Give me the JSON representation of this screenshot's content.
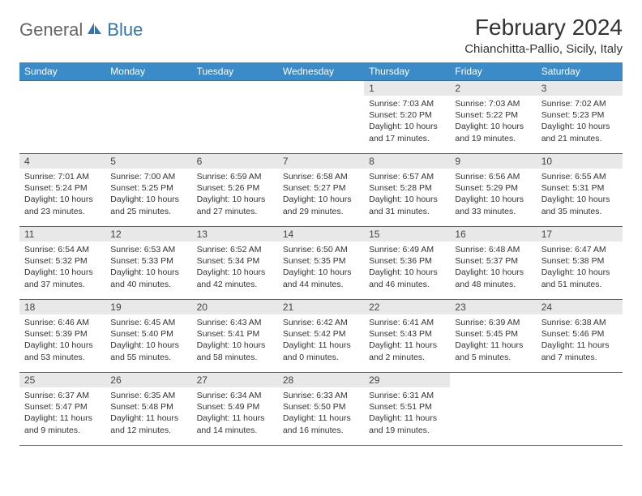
{
  "logo": {
    "text1": "General",
    "text2": "Blue"
  },
  "title": "February 2024",
  "location": "Chianchitta-Pallio, Sicily, Italy",
  "colors": {
    "header_bg": "#3b8bc9",
    "header_text": "#ffffff",
    "daynum_bg": "#e8e8e8",
    "border": "#2e6da8",
    "logo_blue": "#2e75b6"
  },
  "weekdays": [
    "Sunday",
    "Monday",
    "Tuesday",
    "Wednesday",
    "Thursday",
    "Friday",
    "Saturday"
  ],
  "weeks": [
    [
      {
        "empty": true
      },
      {
        "empty": true
      },
      {
        "empty": true
      },
      {
        "empty": true
      },
      {
        "n": "1",
        "sr": "7:03 AM",
        "ss": "5:20 PM",
        "dl": "10 hours and 17 minutes."
      },
      {
        "n": "2",
        "sr": "7:03 AM",
        "ss": "5:22 PM",
        "dl": "10 hours and 19 minutes."
      },
      {
        "n": "3",
        "sr": "7:02 AM",
        "ss": "5:23 PM",
        "dl": "10 hours and 21 minutes."
      }
    ],
    [
      {
        "n": "4",
        "sr": "7:01 AM",
        "ss": "5:24 PM",
        "dl": "10 hours and 23 minutes."
      },
      {
        "n": "5",
        "sr": "7:00 AM",
        "ss": "5:25 PM",
        "dl": "10 hours and 25 minutes."
      },
      {
        "n": "6",
        "sr": "6:59 AM",
        "ss": "5:26 PM",
        "dl": "10 hours and 27 minutes."
      },
      {
        "n": "7",
        "sr": "6:58 AM",
        "ss": "5:27 PM",
        "dl": "10 hours and 29 minutes."
      },
      {
        "n": "8",
        "sr": "6:57 AM",
        "ss": "5:28 PM",
        "dl": "10 hours and 31 minutes."
      },
      {
        "n": "9",
        "sr": "6:56 AM",
        "ss": "5:29 PM",
        "dl": "10 hours and 33 minutes."
      },
      {
        "n": "10",
        "sr": "6:55 AM",
        "ss": "5:31 PM",
        "dl": "10 hours and 35 minutes."
      }
    ],
    [
      {
        "n": "11",
        "sr": "6:54 AM",
        "ss": "5:32 PM",
        "dl": "10 hours and 37 minutes."
      },
      {
        "n": "12",
        "sr": "6:53 AM",
        "ss": "5:33 PM",
        "dl": "10 hours and 40 minutes."
      },
      {
        "n": "13",
        "sr": "6:52 AM",
        "ss": "5:34 PM",
        "dl": "10 hours and 42 minutes."
      },
      {
        "n": "14",
        "sr": "6:50 AM",
        "ss": "5:35 PM",
        "dl": "10 hours and 44 minutes."
      },
      {
        "n": "15",
        "sr": "6:49 AM",
        "ss": "5:36 PM",
        "dl": "10 hours and 46 minutes."
      },
      {
        "n": "16",
        "sr": "6:48 AM",
        "ss": "5:37 PM",
        "dl": "10 hours and 48 minutes."
      },
      {
        "n": "17",
        "sr": "6:47 AM",
        "ss": "5:38 PM",
        "dl": "10 hours and 51 minutes."
      }
    ],
    [
      {
        "n": "18",
        "sr": "6:46 AM",
        "ss": "5:39 PM",
        "dl": "10 hours and 53 minutes."
      },
      {
        "n": "19",
        "sr": "6:45 AM",
        "ss": "5:40 PM",
        "dl": "10 hours and 55 minutes."
      },
      {
        "n": "20",
        "sr": "6:43 AM",
        "ss": "5:41 PM",
        "dl": "10 hours and 58 minutes."
      },
      {
        "n": "21",
        "sr": "6:42 AM",
        "ss": "5:42 PM",
        "dl": "11 hours and 0 minutes."
      },
      {
        "n": "22",
        "sr": "6:41 AM",
        "ss": "5:43 PM",
        "dl": "11 hours and 2 minutes."
      },
      {
        "n": "23",
        "sr": "6:39 AM",
        "ss": "5:45 PM",
        "dl": "11 hours and 5 minutes."
      },
      {
        "n": "24",
        "sr": "6:38 AM",
        "ss": "5:46 PM",
        "dl": "11 hours and 7 minutes."
      }
    ],
    [
      {
        "n": "25",
        "sr": "6:37 AM",
        "ss": "5:47 PM",
        "dl": "11 hours and 9 minutes."
      },
      {
        "n": "26",
        "sr": "6:35 AM",
        "ss": "5:48 PM",
        "dl": "11 hours and 12 minutes."
      },
      {
        "n": "27",
        "sr": "6:34 AM",
        "ss": "5:49 PM",
        "dl": "11 hours and 14 minutes."
      },
      {
        "n": "28",
        "sr": "6:33 AM",
        "ss": "5:50 PM",
        "dl": "11 hours and 16 minutes."
      },
      {
        "n": "29",
        "sr": "6:31 AM",
        "ss": "5:51 PM",
        "dl": "11 hours and 19 minutes."
      },
      {
        "empty": true
      },
      {
        "empty": true
      }
    ]
  ],
  "labels": {
    "sunrise": "Sunrise: ",
    "sunset": "Sunset: ",
    "daylight": "Daylight: "
  }
}
